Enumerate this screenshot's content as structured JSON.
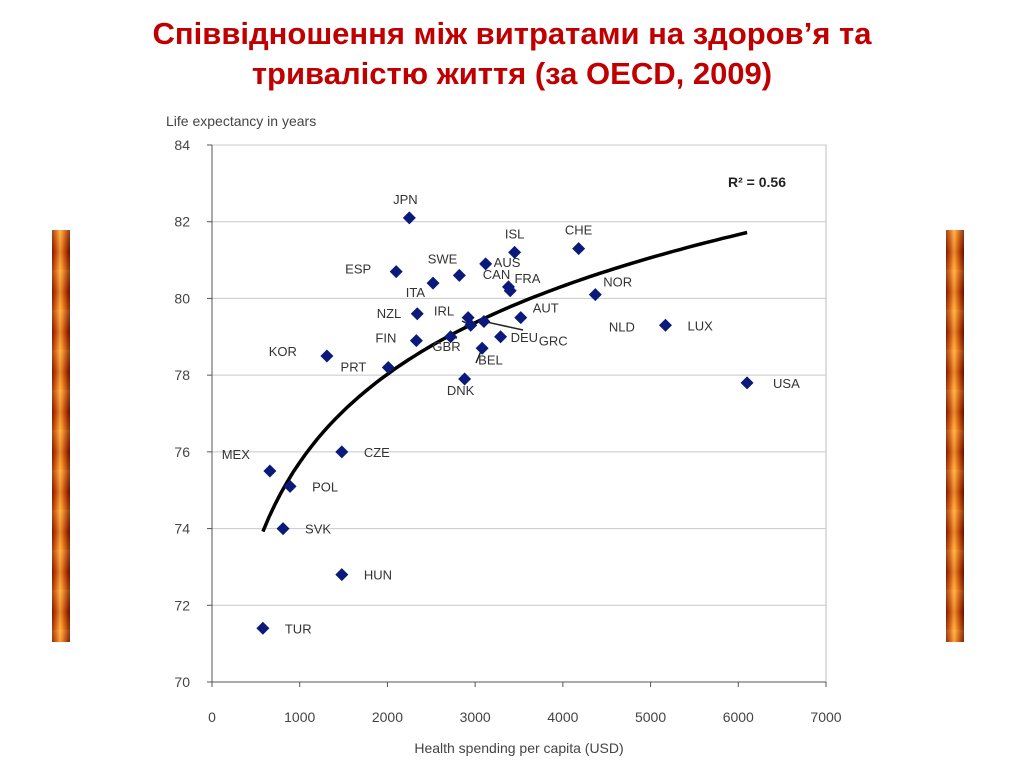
{
  "slide": {
    "title_line1": "Співвідношення між витратами на здоров’я та",
    "title_line2": "тривалістю життя (за OECD, 2009)"
  },
  "chart_data": {
    "type": "scatter",
    "ylabel": "Life expectancy in years",
    "xlabel": "Health spending per capita (USD)",
    "xlim": [
      0,
      7000
    ],
    "ylim": [
      70,
      84
    ],
    "xticks": [
      0,
      1000,
      2000,
      3000,
      4000,
      5000,
      6000,
      7000
    ],
    "yticks": [
      70,
      72,
      74,
      76,
      78,
      80,
      82,
      84
    ],
    "grid": "horizontal",
    "annotation": "R² = 0.56",
    "trendline": "logarithmic",
    "points": [
      {
        "label": "JPN",
        "x": 2250,
        "y": 82.1
      },
      {
        "label": "ISL",
        "x": 3450,
        "y": 81.2
      },
      {
        "label": "CHE",
        "x": 4180,
        "y": 81.3
      },
      {
        "label": "ESP",
        "x": 2100,
        "y": 80.7
      },
      {
        "label": "SWE",
        "x": 2820,
        "y": 80.6
      },
      {
        "label": "AUS",
        "x": 3120,
        "y": 80.9
      },
      {
        "label": "ITA",
        "x": 2520,
        "y": 80.4
      },
      {
        "label": "FRA",
        "x": 3380,
        "y": 80.3
      },
      {
        "label": "NOR",
        "x": 4370,
        "y": 80.1
      },
      {
        "label": "CAN",
        "x": 3400,
        "y": 80.2
      },
      {
        "label": "NZL",
        "x": 2340,
        "y": 79.6
      },
      {
        "label": "IRL",
        "x": 2920,
        "y": 79.5
      },
      {
        "label": "AUT",
        "x": 3520,
        "y": 79.5
      },
      {
        "label": "LUX",
        "x": 5170,
        "y": 79.3
      },
      {
        "label": "NLD",
        "x": 3100,
        "y": 79.4
      },
      {
        "label": "FIN",
        "x": 2330,
        "y": 78.9
      },
      {
        "label": "GBR",
        "x": 2720,
        "y": 79.0
      },
      {
        "label": "DEU",
        "x": 3290,
        "y": 79.0
      },
      {
        "label": "BEL",
        "x": 3080,
        "y": 78.7
      },
      {
        "label": "GRC",
        "x": 2950,
        "y": 79.3
      },
      {
        "label": "KOR",
        "x": 1310,
        "y": 78.5
      },
      {
        "label": "PRT",
        "x": 2010,
        "y": 78.2
      },
      {
        "label": "DNK",
        "x": 2880,
        "y": 77.9
      },
      {
        "label": "USA",
        "x": 6100,
        "y": 77.8
      },
      {
        "label": "CZE",
        "x": 1480,
        "y": 76.0
      },
      {
        "label": "MEX",
        "x": 660,
        "y": 75.5
      },
      {
        "label": "POL",
        "x": 890,
        "y": 75.1
      },
      {
        "label": "SVK",
        "x": 810,
        "y": 74.0
      },
      {
        "label": "HUN",
        "x": 1480,
        "y": 72.8
      },
      {
        "label": "TUR",
        "x": 580,
        "y": 71.4
      }
    ],
    "colors": {
      "marker": "#0a1a7a",
      "trend": "#000000",
      "grid": "#c8c8c8",
      "title": "#c00000"
    }
  }
}
